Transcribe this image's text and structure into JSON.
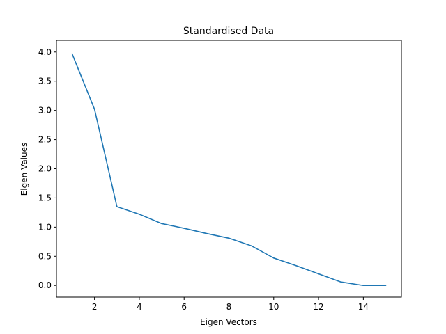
{
  "chart_data": {
    "type": "line",
    "title": "Standardised Data",
    "xlabel": "Eigen Vectors",
    "ylabel": "Eigen Values",
    "xlim": [
      0.3,
      15.7
    ],
    "ylim": [
      -0.2,
      4.2
    ],
    "xticks": [
      2,
      4,
      6,
      8,
      10,
      12,
      14
    ],
    "xtick_labels": [
      "2",
      "4",
      "6",
      "8",
      "10",
      "12",
      "14"
    ],
    "yticks": [
      0.0,
      0.5,
      1.0,
      1.5,
      2.0,
      2.5,
      3.0,
      3.5,
      4.0
    ],
    "ytick_labels": [
      "0.0",
      "0.5",
      "1.0",
      "1.5",
      "2.0",
      "2.5",
      "3.0",
      "3.5",
      "4.0"
    ],
    "grid": false,
    "series": [
      {
        "color": "#1f77b4",
        "x": [
          1,
          2,
          3,
          4,
          5,
          6,
          7,
          8,
          9,
          10,
          11,
          12,
          13,
          14,
          15
        ],
        "values": [
          3.97,
          3.02,
          1.35,
          1.22,
          1.06,
          0.98,
          0.89,
          0.81,
          0.68,
          0.47,
          0.34,
          0.2,
          0.06,
          0.0,
          0.0
        ]
      }
    ]
  }
}
